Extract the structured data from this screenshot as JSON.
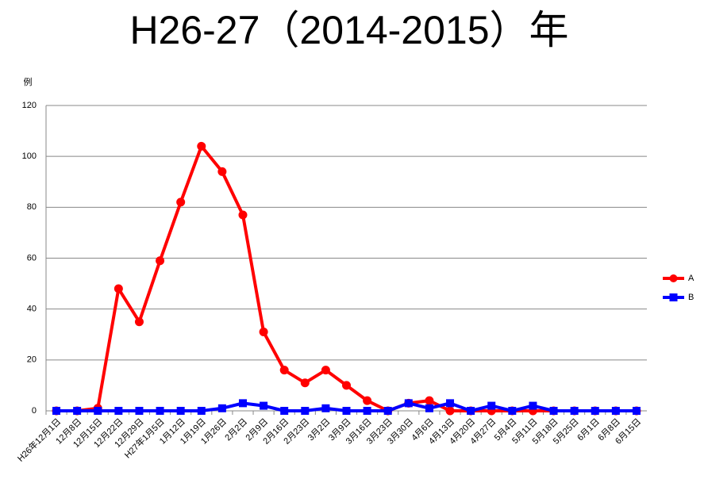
{
  "chart_data": {
    "type": "line",
    "title": "H26-27（2014-2015）年",
    "y_label": "例",
    "categories": [
      "H26年12月1日",
      "12月8日",
      "12月15日",
      "12月22日",
      "12月29日",
      "H27年1月5日",
      "1月12日",
      "1月19日",
      "1月26日",
      "2月2日",
      "2月9日",
      "2月16日",
      "2月23日",
      "3月2日",
      "3月9日",
      "3月16日",
      "3月23日",
      "3月30日",
      "4月6日",
      "4月13日",
      "4月20日",
      "4月27日",
      "5月4日",
      "5月11日",
      "5月18日",
      "5月25日",
      "6月1日",
      "6月8日",
      "6月15日"
    ],
    "series": [
      {
        "name": "A",
        "color": "#ff0000",
        "marker": "circle",
        "values": [
          0,
          0,
          1,
          48,
          35,
          59,
          82,
          104,
          94,
          77,
          31,
          16,
          11,
          16,
          10,
          4,
          0,
          3,
          4,
          0,
          0,
          0,
          0,
          0,
          0,
          0,
          0,
          0,
          0
        ]
      },
      {
        "name": "B",
        "color": "#0000ff",
        "marker": "square",
        "values": [
          0,
          0,
          0,
          0,
          0,
          0,
          0,
          0,
          1,
          3,
          2,
          0,
          0,
          1,
          0,
          0,
          0,
          3,
          1,
          3,
          0,
          2,
          0,
          2,
          0,
          0,
          0,
          0,
          0
        ]
      }
    ],
    "ylim": [
      0,
      120
    ],
    "yticks": [
      0,
      20,
      40,
      60,
      80,
      100,
      120
    ],
    "grid": true,
    "legend": "right"
  }
}
